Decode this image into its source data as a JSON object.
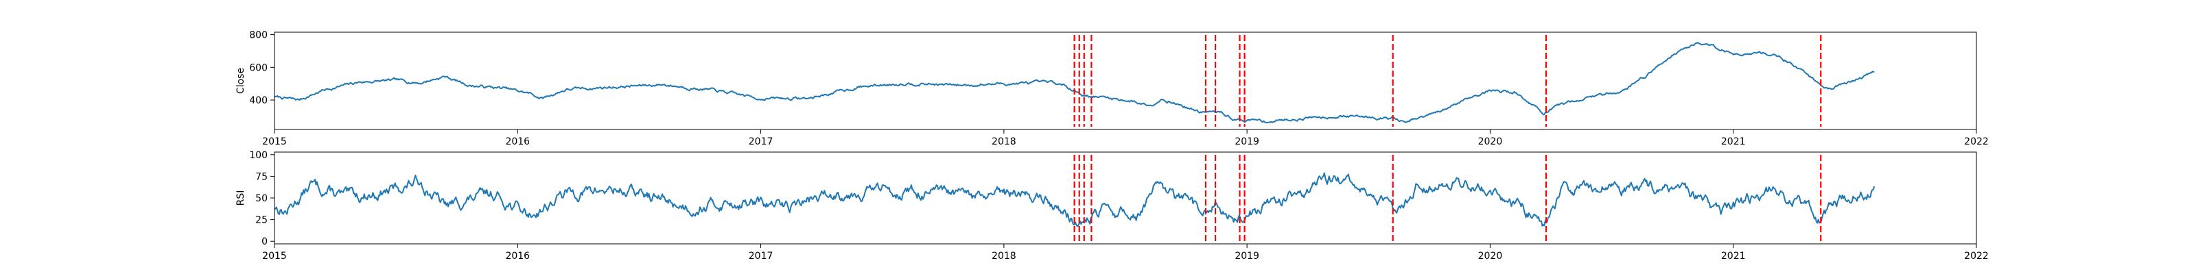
{
  "chart_data": [
    {
      "type": "line",
      "ylabel": "Close",
      "xlim": [
        2015.0,
        2022.0
      ],
      "ylim": [
        220,
        815
      ],
      "xticks": [
        2015,
        2016,
        2017,
        2018,
        2019,
        2020,
        2021,
        2022
      ],
      "xtick_labels": [
        "2015",
        "2016",
        "2017",
        "2018",
        "2019",
        "2020",
        "2021",
        "2022"
      ],
      "yticks": [
        400,
        600,
        800
      ],
      "ytick_labels": [
        "400",
        "600",
        "800"
      ],
      "grid": false,
      "series_color": "#1f77b4",
      "anchors": [
        [
          2015.0,
          420
        ],
        [
          2015.1,
          400
        ],
        [
          2015.2,
          460
        ],
        [
          2015.35,
          510
        ],
        [
          2015.5,
          520
        ],
        [
          2015.6,
          505
        ],
        [
          2015.7,
          545
        ],
        [
          2015.8,
          490
        ],
        [
          2015.95,
          470
        ],
        [
          2016.05,
          440
        ],
        [
          2016.1,
          410
        ],
        [
          2016.2,
          465
        ],
        [
          2016.4,
          480
        ],
        [
          2016.6,
          495
        ],
        [
          2016.8,
          460
        ],
        [
          2017.0,
          410
        ],
        [
          2017.2,
          410
        ],
        [
          2017.4,
          480
        ],
        [
          2017.6,
          505
        ],
        [
          2017.8,
          490
        ],
        [
          2018.0,
          500
        ],
        [
          2018.2,
          505
        ],
        [
          2018.28,
          470
        ],
        [
          2018.33,
          430
        ],
        [
          2018.5,
          400
        ],
        [
          2018.6,
          370
        ],
        [
          2018.65,
          410
        ],
        [
          2018.8,
          330
        ],
        [
          2018.9,
          320
        ],
        [
          2018.95,
          280
        ],
        [
          2019.1,
          270
        ],
        [
          2019.3,
          300
        ],
        [
          2019.5,
          300
        ],
        [
          2019.6,
          290
        ],
        [
          2019.65,
          260
        ],
        [
          2019.8,
          330
        ],
        [
          2019.9,
          410
        ],
        [
          2020.0,
          460
        ],
        [
          2020.1,
          450
        ],
        [
          2020.22,
          320
        ],
        [
          2020.26,
          345
        ],
        [
          2020.35,
          400
        ],
        [
          2020.45,
          430
        ],
        [
          2020.55,
          460
        ],
        [
          2020.65,
          560
        ],
        [
          2020.75,
          680
        ],
        [
          2020.85,
          750
        ],
        [
          2020.92,
          730
        ],
        [
          2021.0,
          680
        ],
        [
          2021.1,
          690
        ],
        [
          2021.2,
          660
        ],
        [
          2021.3,
          560
        ],
        [
          2021.36,
          500
        ],
        [
          2021.4,
          470
        ],
        [
          2021.5,
          520
        ],
        [
          2021.58,
          575
        ]
      ],
      "noise_amp": 12,
      "seed": 7
    },
    {
      "type": "line",
      "ylabel": "RSI",
      "xlim": [
        2015.0,
        2022.0
      ],
      "ylim": [
        -3,
        103
      ],
      "xticks": [
        2015,
        2016,
        2017,
        2018,
        2019,
        2020,
        2021,
        2022
      ],
      "xtick_labels": [
        "2015",
        "2016",
        "2017",
        "2018",
        "2019",
        "2020",
        "2021",
        "2022"
      ],
      "yticks": [
        0,
        25,
        50,
        75,
        100
      ],
      "ytick_labels": [
        "0",
        "25",
        "50",
        "75",
        "100"
      ],
      "grid": false,
      "series_color": "#1f77b4",
      "anchors": [
        [
          2015.0,
          40
        ],
        [
          2015.05,
          35
        ],
        [
          2015.15,
          65
        ],
        [
          2015.3,
          50
        ],
        [
          2015.5,
          60
        ],
        [
          2015.6,
          70
        ],
        [
          2015.7,
          40
        ],
        [
          2015.9,
          55
        ],
        [
          2016.05,
          30
        ],
        [
          2016.2,
          55
        ],
        [
          2016.4,
          60
        ],
        [
          2016.5,
          55
        ],
        [
          2016.7,
          40
        ],
        [
          2016.9,
          45
        ],
        [
          2017.1,
          40
        ],
        [
          2017.3,
          55
        ],
        [
          2017.5,
          60
        ],
        [
          2017.7,
          55
        ],
        [
          2017.9,
          50
        ],
        [
          2018.1,
          55
        ],
        [
          2018.2,
          45
        ],
        [
          2018.28,
          25
        ],
        [
          2018.33,
          20
        ],
        [
          2018.4,
          35
        ],
        [
          2018.55,
          30
        ],
        [
          2018.62,
          60
        ],
        [
          2018.75,
          45
        ],
        [
          2018.82,
          30
        ],
        [
          2018.88,
          45
        ],
        [
          2018.95,
          25
        ],
        [
          2019.1,
          45
        ],
        [
          2019.25,
          60
        ],
        [
          2019.35,
          75
        ],
        [
          2019.5,
          55
        ],
        [
          2019.6,
          35
        ],
        [
          2019.7,
          65
        ],
        [
          2019.85,
          70
        ],
        [
          2020.0,
          60
        ],
        [
          2020.1,
          45
        ],
        [
          2020.22,
          20
        ],
        [
          2020.3,
          60
        ],
        [
          2020.5,
          65
        ],
        [
          2020.7,
          60
        ],
        [
          2020.85,
          50
        ],
        [
          2020.95,
          30
        ],
        [
          2021.05,
          45
        ],
        [
          2021.15,
          60
        ],
        [
          2021.3,
          40
        ],
        [
          2021.36,
          25
        ],
        [
          2021.45,
          50
        ],
        [
          2021.58,
          60
        ]
      ],
      "noise_amp": 9,
      "seed": 13
    }
  ],
  "signal_lines": {
    "color": "#ff0000",
    "style": "dashed",
    "x": [
      2018.29,
      2018.31,
      2018.33,
      2018.36,
      2018.83,
      2018.87,
      2018.97,
      2018.99,
      2019.6,
      2020.23,
      2021.36
    ]
  }
}
